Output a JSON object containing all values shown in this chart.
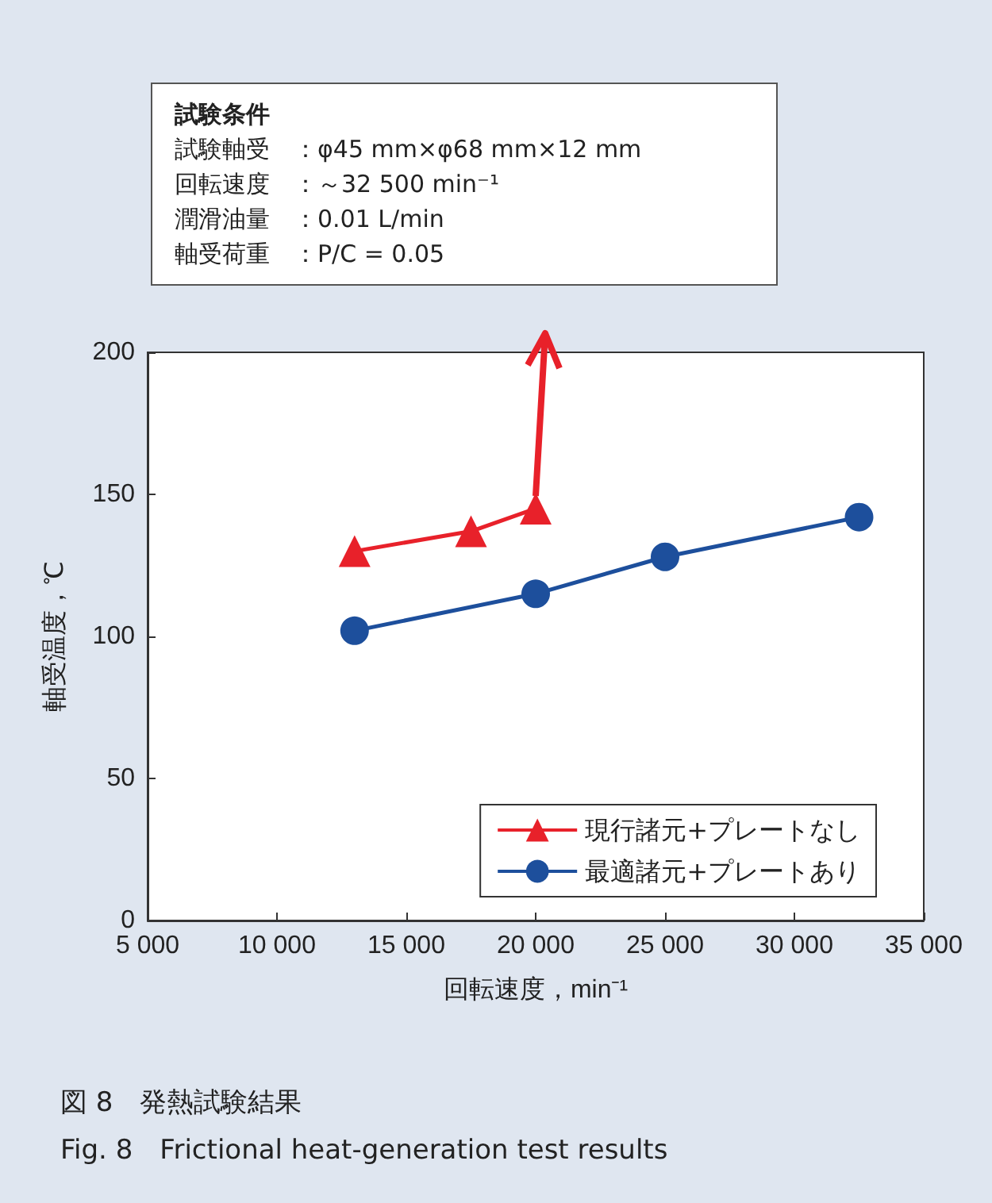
{
  "chart_data": {
    "type": "line",
    "title": "図 8　発熱試験結果",
    "subtitle": "Fig. 8　Frictional heat-generation test results",
    "xlabel": "回転速度，min⁻¹",
    "ylabel": "軸受温度，℃",
    "annotations": [
      "試験条件",
      "試験軸受　：φ45 mm×φ68 mm×12 mm",
      "回転速度　：～32 500 min⁻¹",
      "潤滑油量　：0.01 L/min",
      "軸受荷重　：P/C = 0.05"
    ],
    "series": [
      {
        "name": "現行諸元+プレートなし",
        "color": "#e8212a",
        "marker": "triangle",
        "x": [
          13000,
          17500,
          20000
        ],
        "values": [
          130,
          137,
          145
        ]
      },
      {
        "name": "最適諸元+プレートあり",
        "color": "#1d4f9c",
        "marker": "circle",
        "x": [
          13000,
          20000,
          25000,
          32500
        ],
        "values": [
          102,
          115,
          128,
          142
        ]
      }
    ],
    "xlim": [
      5000,
      35000
    ],
    "xticks": [
      {
        "value": 5000,
        "label": "5 000"
      },
      {
        "value": 10000,
        "label": "10 000"
      },
      {
        "value": 15000,
        "label": "15 000"
      },
      {
        "value": 20000,
        "label": "20 000"
      },
      {
        "value": 25000,
        "label": "25 000"
      },
      {
        "value": 30000,
        "label": "30 000"
      },
      {
        "value": 35000,
        "label": "35 000"
      }
    ],
    "ylim": [
      0,
      200
    ],
    "yticks": [
      0,
      50,
      100,
      150,
      200
    ],
    "grid": false,
    "legend": "bottom right",
    "line_style": "solid"
  }
}
